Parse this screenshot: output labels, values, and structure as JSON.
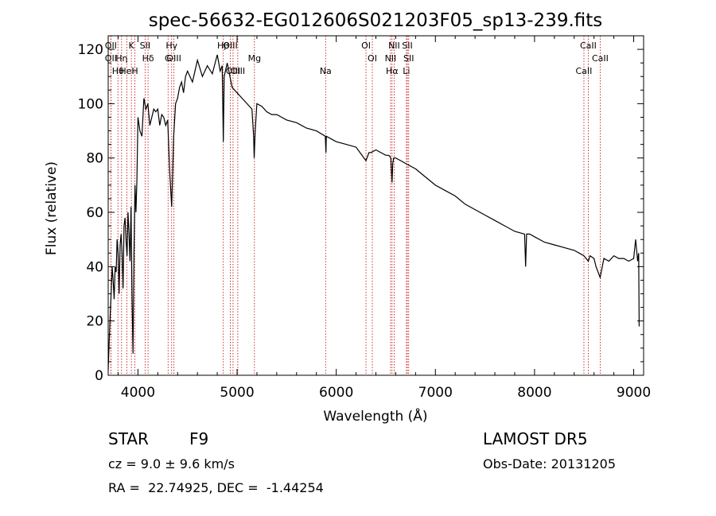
{
  "chart_data": {
    "type": "line",
    "title": "spec-56632-EG012606S021203F05_sp13-239.fits",
    "xlabel": "Wavelength (Å)",
    "ylabel": "Flux (relative)",
    "xlim": [
      3700,
      9100
    ],
    "ylim": [
      0,
      125
    ],
    "xticks": [
      4000,
      5000,
      6000,
      7000,
      8000,
      9000
    ],
    "yticks": [
      0,
      20,
      40,
      60,
      80,
      100,
      120
    ],
    "grid": false,
    "series": [
      {
        "x": [
          3700,
          3710,
          3720,
          3730,
          3740,
          3750,
          3760,
          3770,
          3780,
          3790,
          3800,
          3810,
          3820,
          3830,
          3840,
          3850,
          3860,
          3870,
          3880,
          3890,
          3900,
          3910,
          3920,
          3930,
          3940,
          3950,
          3960,
          3970,
          3980,
          3990,
          4000,
          4020,
          4040,
          4060,
          4080,
          4100,
          4120,
          4140,
          4160,
          4180,
          4200,
          4220,
          4240,
          4260,
          4280,
          4300,
          4320,
          4340,
          4360,
          4380,
          4400,
          4420,
          4440,
          4460,
          4480,
          4500,
          4550,
          4600,
          4650,
          4700,
          4750,
          4800,
          4830,
          4850,
          4861,
          4870,
          4900,
          4950,
          5000,
          5050,
          5100,
          5150,
          5167,
          5172,
          5183,
          5200,
          5250,
          5300,
          5350,
          5400,
          5450,
          5500,
          5600,
          5700,
          5800,
          5890,
          5896,
          5900,
          5950,
          6000,
          6100,
          6200,
          6300,
          6330,
          6350,
          6400,
          6450,
          6500,
          6530,
          6550,
          6563,
          6570,
          6580,
          6600,
          6650,
          6700,
          6800,
          6900,
          7000,
          7100,
          7200,
          7300,
          7400,
          7500,
          7600,
          7700,
          7800,
          7900,
          7910,
          7920,
          7950,
          8000,
          8100,
          8200,
          8300,
          8400,
          8450,
          8498,
          8542,
          8560,
          8600,
          8620,
          8662,
          8700,
          8750,
          8800,
          8850,
          8900,
          8950,
          9000,
          9020,
          9040,
          9050,
          9055
        ],
        "y": [
          2,
          12,
          22,
          30,
          40,
          35,
          28,
          40,
          38,
          50,
          45,
          30,
          48,
          52,
          45,
          32,
          55,
          58,
          50,
          44,
          60,
          52,
          42,
          62,
          30,
          8,
          45,
          70,
          60,
          72,
          95,
          90,
          88,
          102,
          98,
          100,
          92,
          95,
          98,
          97,
          98,
          92,
          96,
          95,
          92,
          94,
          75,
          62,
          88,
          100,
          102,
          106,
          108,
          104,
          110,
          112,
          108,
          116,
          110,
          114,
          111,
          118,
          112,
          114,
          86,
          110,
          115,
          106,
          104,
          102,
          100,
          98,
          88,
          80,
          90,
          100,
          99,
          97,
          96,
          96,
          95,
          94,
          93,
          91,
          90,
          88,
          82,
          88,
          87,
          86,
          85,
          84,
          79,
          82,
          82,
          83,
          82,
          81,
          81,
          80,
          71,
          78,
          80,
          80,
          79,
          78,
          76,
          73,
          70,
          68,
          66,
          63,
          61,
          59,
          57,
          55,
          53,
          52,
          40,
          52,
          52,
          51,
          49,
          48,
          47,
          46,
          45,
          44,
          42,
          44,
          43,
          40,
          36,
          43,
          42,
          44,
          43,
          43,
          42,
          43,
          50,
          42,
          45,
          18
        ]
      }
    ],
    "lines": [
      {
        "label": "Hβ",
        "x": 4861
      },
      {
        "label": "Hδ",
        "x": 4102
      },
      {
        "label": "Hθ",
        "x": 3798
      },
      {
        "label": "K",
        "x": 3934
      },
      {
        "label": "OII",
        "x": 3727
      },
      {
        "label": "HeI",
        "x": 3889
      },
      {
        "label": "SII",
        "x": 4072
      },
      {
        "label": "OIII",
        "x": 4363
      },
      {
        "label": "OIII",
        "x": 5007
      },
      {
        "label": "OII",
        "x": 3727
      },
      {
        "label": "Hη",
        "x": 3835
      },
      {
        "label": "H",
        "x": 3969
      },
      {
        "label": "Hγ",
        "x": 4340
      },
      {
        "label": "G",
        "x": 4304
      },
      {
        "label": "OIII",
        "x": 4959
      },
      {
        "label": "OIII",
        "x": 4932
      },
      {
        "label": "Mg",
        "x": 5175
      },
      {
        "label": "Na",
        "x": 5893
      },
      {
        "label": "OI",
        "x": 6300
      },
      {
        "label": "OI",
        "x": 6364
      },
      {
        "label": "Hα",
        "x": 6563
      },
      {
        "label": "SII",
        "x": 6717
      },
      {
        "label": "NII",
        "x": 6548
      },
      {
        "label": "Li",
        "x": 6708
      },
      {
        "label": "NII",
        "x": 6584
      },
      {
        "label": "SII",
        "x": 6731
      },
      {
        "label": "CaII",
        "x": 8498
      },
      {
        "label": "CaII",
        "x": 8542
      },
      {
        "label": "CaII",
        "x": 8662
      }
    ]
  },
  "info": {
    "class": "STAR",
    "subclass": "F9",
    "survey": "LAMOST DR5",
    "cz": "cz = 9.0 ± 9.6 km/s",
    "obs_date": "Obs-Date: 20131205",
    "radec": "RA =  22.74925, DEC =  -1.44254"
  }
}
